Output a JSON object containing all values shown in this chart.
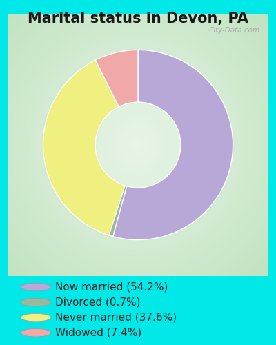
{
  "title": "Marital status in Devon, PA",
  "slices": [
    54.2,
    0.7,
    37.6,
    7.4
  ],
  "labels": [
    "Now married (54.2%)",
    "Divorced (0.7%)",
    "Never married (37.6%)",
    "Widowed (7.4%)"
  ],
  "colors": [
    "#b8a8d8",
    "#9ab89a",
    "#f0f080",
    "#f0a8a8"
  ],
  "start_angle": 90,
  "bg_cyan": "#00e8e8",
  "panel_edge_color": "#b8ddc0",
  "title_fontsize": 15,
  "legend_fontsize": 11,
  "watermark": "City-Data.com",
  "donut_width": 0.55
}
